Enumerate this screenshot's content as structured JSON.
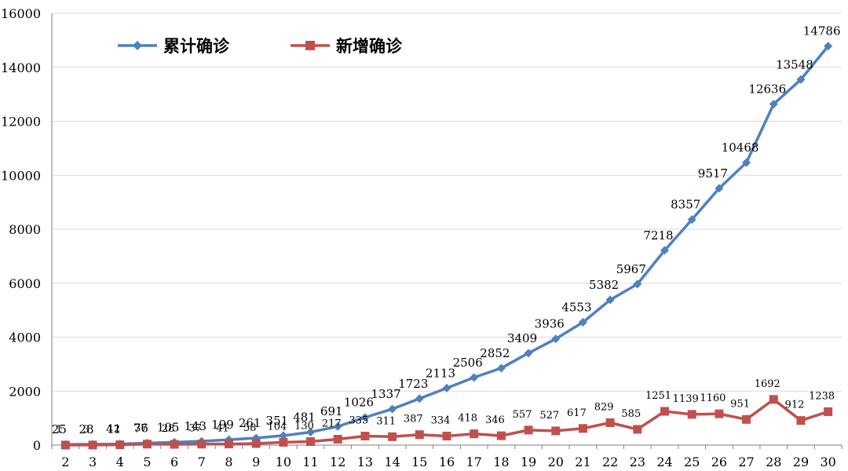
{
  "chart_data": {
    "type": "line",
    "title": "",
    "xlabel": "",
    "ylabel": "",
    "categories": [
      "2",
      "3",
      "4",
      "5",
      "6",
      "7",
      "8",
      "9",
      "10",
      "11",
      "12",
      "13",
      "14",
      "15",
      "16",
      "17",
      "18",
      "19",
      "20",
      "21",
      "22",
      "23",
      "24",
      "25",
      "26",
      "27",
      "28",
      "29",
      "30"
    ],
    "ylim": [
      0,
      16000
    ],
    "y_ticks": [
      0,
      2000,
      4000,
      6000,
      8000,
      10000,
      12000,
      14000,
      16000
    ],
    "grid": true,
    "legend_position": "top-left",
    "series": [
      {
        "name": "累计确诊",
        "color": "#4f81bd",
        "marker": "diamond",
        "values": [
          25,
          28,
          41,
          76,
          105,
          143,
          199,
          261,
          351,
          481,
          691,
          1026,
          1337,
          1723,
          2113,
          2506,
          2852,
          3409,
          3936,
          4553,
          5382,
          5967,
          7218,
          8357,
          9517,
          10468,
          12636,
          13548,
          14786
        ]
      },
      {
        "name": "新增确诊",
        "color": "#c0504d",
        "marker": "square",
        "values": [
          1,
          3,
          12,
          37,
          28,
          37,
          41,
          58,
          104,
          130,
          217,
          335,
          311,
          387,
          334,
          418,
          346,
          557,
          527,
          617,
          829,
          585,
          1251,
          1139,
          1160,
          951,
          1692,
          912,
          1238
        ]
      }
    ]
  }
}
